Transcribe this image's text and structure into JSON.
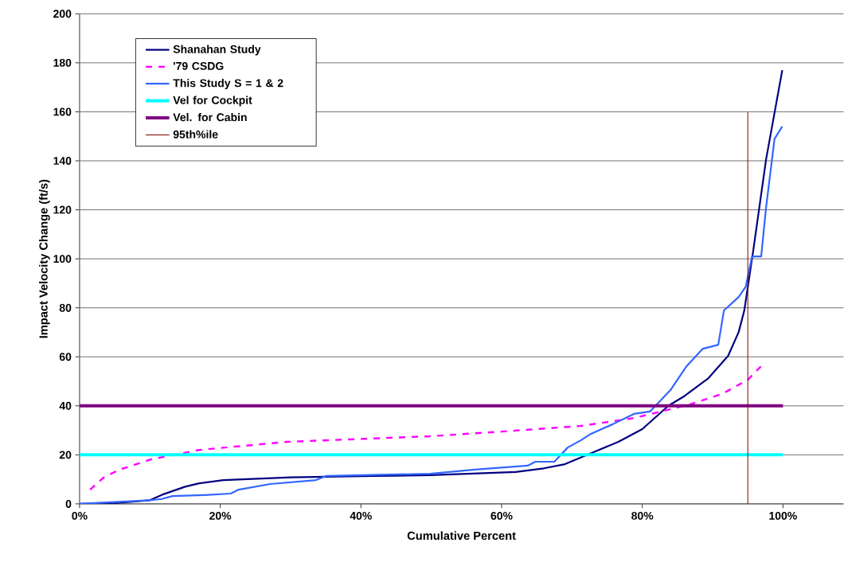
{
  "chart_data": {
    "type": "line",
    "xlabel": "Cumulative Percent",
    "ylabel": "Impact Velocity Change (ft/s)",
    "xlim": [
      0,
      108.6
    ],
    "ylim": [
      0,
      200
    ],
    "xticks": [
      {
        "value": 0,
        "label": "0%"
      },
      {
        "value": 20,
        "label": "20%"
      },
      {
        "value": 40,
        "label": "40%"
      },
      {
        "value": 60,
        "label": "60%"
      },
      {
        "value": 80,
        "label": "80%"
      },
      {
        "value": 100,
        "label": "100%"
      }
    ],
    "yticks": [
      0,
      20,
      40,
      60,
      80,
      100,
      120,
      140,
      160,
      180,
      200
    ],
    "grid": "y",
    "legend": "top left",
    "marker": "none",
    "series": [
      {
        "name": "Shanahan Study",
        "color": "#000080",
        "line_style": "solid",
        "x": [
          0,
          5,
          10,
          12,
          15,
          17,
          20.4,
          30,
          40,
          49.8,
          62,
          66,
          69,
          73,
          76.6,
          80,
          83.7,
          86,
          89.4,
          92.2,
          93.7,
          94.5,
          95.8,
          97.6,
          99.9
        ],
        "values": [
          0,
          0.3,
          1.5,
          4,
          7,
          8.4,
          9.7,
          10.8,
          11.3,
          11.7,
          13,
          14.5,
          16.2,
          21,
          25.3,
          30.5,
          40,
          44,
          51.3,
          60.4,
          70.1,
          78.9,
          103.9,
          140.6,
          177
        ]
      },
      {
        "name": "'79 CSDG",
        "color": "#ff00ff",
        "line_style": "dashed",
        "x": [
          1.5,
          3.4,
          5.7,
          10.2,
          17,
          29.4,
          49.8,
          60,
          71.3,
          78.8,
          86.8,
          91.3,
          95,
          97.1
        ],
        "values": [
          5.8,
          10.7,
          14,
          18.2,
          22,
          25.3,
          27.6,
          29.5,
          31.8,
          35,
          40.6,
          44.8,
          50.6,
          56.8
        ]
      },
      {
        "name": "This Study S = 1 & 2",
        "color": "#3366ff",
        "line_style": "solid",
        "x": [
          0,
          10,
          11.7,
          13.2,
          17.8,
          21.5,
          22.6,
          27.1,
          33.6,
          35.1,
          49.8,
          56.2,
          63.7,
          64.8,
          67.5,
          69.4,
          71.3,
          72.7,
          75.8,
          78.8,
          81.1,
          82.2,
          84,
          86.3,
          88.6,
          90.8,
          91.6,
          93.7,
          94.7,
          95.6,
          96.9,
          97.6,
          98.8,
          99.9
        ],
        "values": [
          0,
          1.5,
          2,
          3.2,
          3.6,
          4.2,
          5.8,
          8.1,
          9.7,
          11.4,
          12.3,
          14,
          15.6,
          17.2,
          17.2,
          23,
          26,
          28.6,
          32.5,
          36.7,
          37.7,
          41,
          46.4,
          56.2,
          63.3,
          64.9,
          78.9,
          84.4,
          88.6,
          101,
          101,
          121,
          149,
          154
        ]
      },
      {
        "name": "Vel  for Cockpit",
        "color": "#00ffff",
        "line_style": "solid",
        "x": [
          0,
          100
        ],
        "values": [
          20,
          20
        ]
      },
      {
        "name": "Vel. for Cabin",
        "color": "#800080",
        "line_style": "solid",
        "x": [
          0,
          100
        ],
        "values": [
          40,
          40
        ]
      },
      {
        "name": "95th%ile",
        "color": "#800000",
        "line_style": "solid",
        "x": [
          95,
          95
        ],
        "values": [
          0,
          160
        ]
      }
    ]
  }
}
